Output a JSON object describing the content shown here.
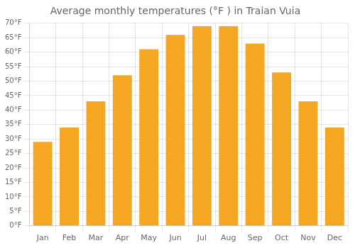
{
  "chart_data": {
    "type": "bar",
    "title": "Average monthly temperatures (°F ) in Traian Vuia",
    "categories": [
      "Jan",
      "Feb",
      "Mar",
      "Apr",
      "May",
      "Jun",
      "Jul",
      "Aug",
      "Sep",
      "Oct",
      "Nov",
      "Dec"
    ],
    "values": [
      29,
      34,
      43,
      52,
      61,
      66,
      69,
      69,
      63,
      53,
      43,
      34
    ],
    "color": "#F5A623",
    "ylim": [
      0,
      70
    ],
    "yticks": [
      {
        "value": 0,
        "label": "0°F"
      },
      {
        "value": 5,
        "label": "5°F"
      },
      {
        "value": 10,
        "label": "10°F"
      },
      {
        "value": 15,
        "label": "15°F"
      },
      {
        "value": 20,
        "label": "20°F"
      },
      {
        "value": 25,
        "label": "25°F"
      },
      {
        "value": 30,
        "label": "30°F"
      },
      {
        "value": 35,
        "label": "35°F"
      },
      {
        "value": 40,
        "label": "40°F"
      },
      {
        "value": 45,
        "label": "45°F"
      },
      {
        "value": 50,
        "label": "50°F"
      },
      {
        "value": 55,
        "label": "55°F"
      },
      {
        "value": 60,
        "label": "60°F"
      },
      {
        "value": 65,
        "label": "65°F"
      },
      {
        "value": 70,
        "label": "70°F"
      }
    ],
    "grid": true
  }
}
